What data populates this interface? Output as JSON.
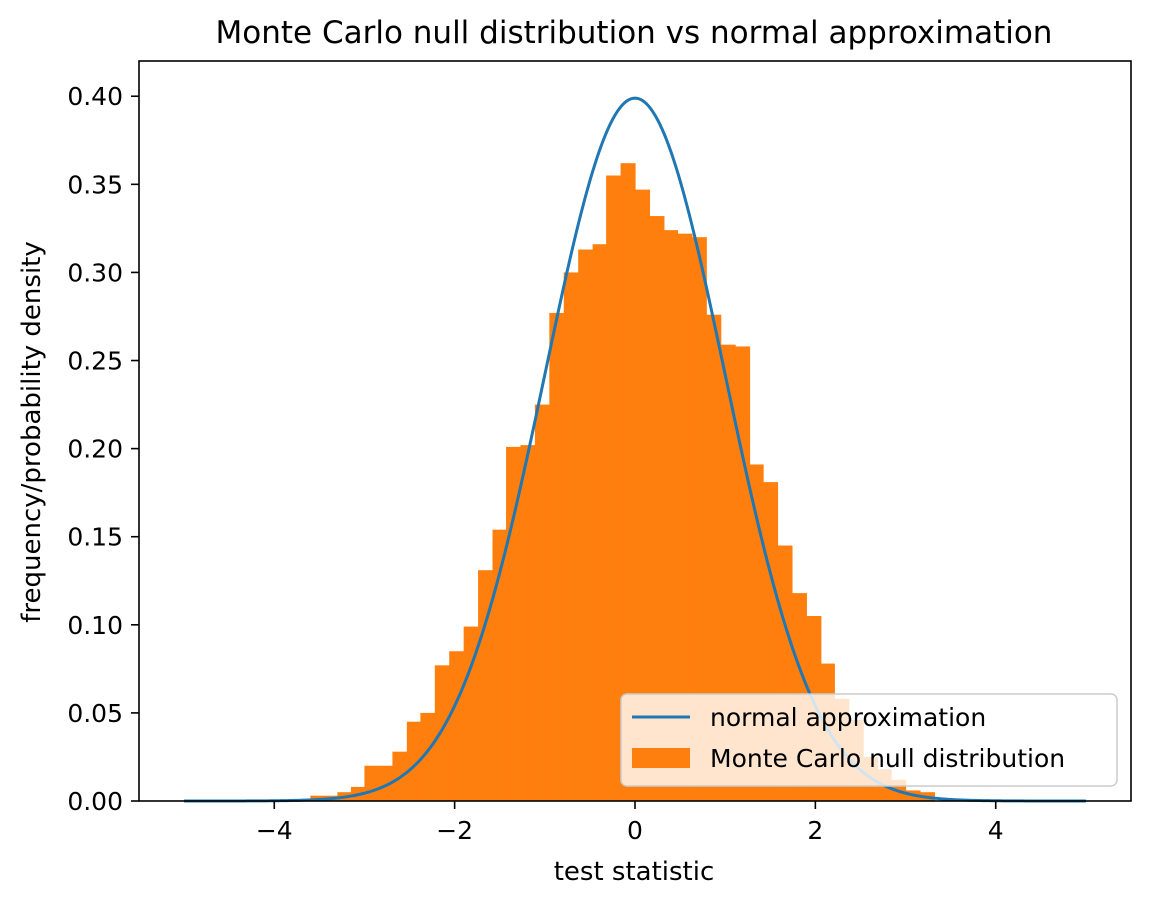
{
  "chart_data": {
    "type": "bar",
    "title": "Monte Carlo null distribution vs normal approximation",
    "xlabel": "test statistic",
    "ylabel": "frequency/probability density",
    "xlim": [
      -5.5,
      5.5
    ],
    "ylim": [
      0.0,
      0.42
    ],
    "xticks": [
      -4,
      -2,
      0,
      2,
      4
    ],
    "xtick_labels": [
      "−4",
      "−2",
      "0",
      "2",
      "4"
    ],
    "yticks": [
      0.0,
      0.05,
      0.1,
      0.15,
      0.2,
      0.25,
      0.3,
      0.35,
      0.4
    ],
    "ytick_labels": [
      "0.00",
      "0.05",
      "0.10",
      "0.15",
      "0.20",
      "0.25",
      "0.30",
      "0.35",
      "0.40"
    ],
    "grid": false,
    "legend": {
      "placement": "lower-right"
    },
    "series": [
      {
        "name": "normal approximation",
        "type": "line",
        "color": "#1f77b4",
        "function": "standard-normal-pdf",
        "x_range": [
          -5,
          5
        ]
      },
      {
        "name": "Monte Carlo null distribution",
        "type": "histogram",
        "color": "#ff7f0e",
        "bins": [
          {
            "x0": -3.6,
            "x1": -3.45,
            "value": 0.003
          },
          {
            "x0": -3.45,
            "x1": -3.3,
            "value": 0.003
          },
          {
            "x0": -3.3,
            "x1": -3.15,
            "value": 0.005
          },
          {
            "x0": -3.15,
            "x1": -3.0,
            "value": 0.008
          },
          {
            "x0": -3.0,
            "x1": -2.85,
            "value": 0.02
          },
          {
            "x0": -2.85,
            "x1": -2.69,
            "value": 0.02
          },
          {
            "x0": -2.69,
            "x1": -2.53,
            "value": 0.028
          },
          {
            "x0": -2.53,
            "x1": -2.38,
            "value": 0.045
          },
          {
            "x0": -2.38,
            "x1": -2.22,
            "value": 0.05
          },
          {
            "x0": -2.22,
            "x1": -2.06,
            "value": 0.077
          },
          {
            "x0": -2.06,
            "x1": -1.9,
            "value": 0.085
          },
          {
            "x0": -1.9,
            "x1": -1.74,
            "value": 0.099
          },
          {
            "x0": -1.74,
            "x1": -1.58,
            "value": 0.131
          },
          {
            "x0": -1.58,
            "x1": -1.43,
            "value": 0.154
          },
          {
            "x0": -1.43,
            "x1": -1.27,
            "value": 0.201
          },
          {
            "x0": -1.27,
            "x1": -1.11,
            "value": 0.202
          },
          {
            "x0": -1.11,
            "x1": -0.95,
            "value": 0.225
          },
          {
            "x0": -0.95,
            "x1": -0.79,
            "value": 0.277
          },
          {
            "x0": -0.79,
            "x1": -0.63,
            "value": 0.3
          },
          {
            "x0": -0.63,
            "x1": -0.47,
            "value": 0.313
          },
          {
            "x0": -0.47,
            "x1": -0.32,
            "value": 0.316
          },
          {
            "x0": -0.32,
            "x1": -0.16,
            "value": 0.355
          },
          {
            "x0": -0.16,
            "x1": 0.0,
            "value": 0.362
          },
          {
            "x0": 0.0,
            "x1": 0.16,
            "value": 0.347
          },
          {
            "x0": 0.16,
            "x1": 0.32,
            "value": 0.332
          },
          {
            "x0": 0.32,
            "x1": 0.47,
            "value": 0.324
          },
          {
            "x0": 0.47,
            "x1": 0.63,
            "value": 0.322
          },
          {
            "x0": 0.63,
            "x1": 0.79,
            "value": 0.32
          },
          {
            "x0": 0.79,
            "x1": 0.95,
            "value": 0.276
          },
          {
            "x0": 0.95,
            "x1": 1.11,
            "value": 0.259
          },
          {
            "x0": 1.11,
            "x1": 1.27,
            "value": 0.258
          },
          {
            "x0": 1.27,
            "x1": 1.42,
            "value": 0.191
          },
          {
            "x0": 1.42,
            "x1": 1.58,
            "value": 0.181
          },
          {
            "x0": 1.58,
            "x1": 1.74,
            "value": 0.145
          },
          {
            "x0": 1.74,
            "x1": 1.9,
            "value": 0.118
          },
          {
            "x0": 1.9,
            "x1": 2.06,
            "value": 0.105
          },
          {
            "x0": 2.06,
            "x1": 2.21,
            "value": 0.078
          },
          {
            "x0": 2.21,
            "x1": 2.37,
            "value": 0.058
          },
          {
            "x0": 2.37,
            "x1": 2.53,
            "value": 0.046
          },
          {
            "x0": 2.53,
            "x1": 2.69,
            "value": 0.025
          },
          {
            "x0": 2.69,
            "x1": 2.84,
            "value": 0.018
          },
          {
            "x0": 2.84,
            "x1": 3.0,
            "value": 0.012
          },
          {
            "x0": 3.0,
            "x1": 3.16,
            "value": 0.006
          },
          {
            "x0": 3.16,
            "x1": 3.32,
            "value": 0.005
          }
        ]
      }
    ]
  }
}
